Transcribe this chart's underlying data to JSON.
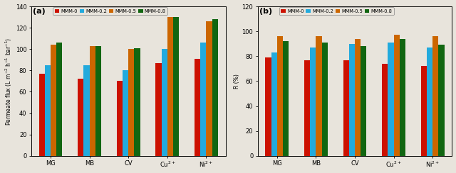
{
  "categories": [
    "MG",
    "MB",
    "CV",
    "Cu$^{2+}$",
    "Ni$^{2+}$"
  ],
  "legend_labels": [
    "MMM-0",
    "MMM-0.2",
    "MMM-0.5",
    "MMM-0.8"
  ],
  "bar_colors": [
    "#cc1100",
    "#22aadd",
    "#cc6600",
    "#116611"
  ],
  "bg_color": "#e8e4dc",
  "panel_a": {
    "title": "(a)",
    "ylabel": "Permeate flux (L m$^{-2}$ h$^{-1}$ bar$^{-1}$)",
    "ylim": [
      0,
      140
    ],
    "yticks": [
      0,
      20,
      40,
      60,
      80,
      100,
      120,
      140
    ],
    "values": {
      "MMM-0": [
        77,
        72,
        70,
        87,
        91
      ],
      "MMM-0.2": [
        85,
        85,
        80,
        100,
        106
      ],
      "MMM-0.5": [
        104,
        103,
        100,
        130,
        126
      ],
      "MMM-0.8": [
        106,
        103,
        101,
        130,
        128
      ]
    }
  },
  "panel_b": {
    "title": "(b)",
    "ylabel": "R (%)",
    "ylim": [
      0,
      120
    ],
    "yticks": [
      0,
      20,
      40,
      60,
      80,
      100,
      120
    ],
    "values": {
      "MMM-0": [
        79,
        77,
        77,
        74,
        72
      ],
      "MMM-0.2": [
        83,
        87,
        90,
        91,
        87
      ],
      "MMM-0.5": [
        96,
        96,
        94,
        97,
        96
      ],
      "MMM-0.8": [
        92,
        91,
        88,
        94,
        89
      ]
    }
  }
}
